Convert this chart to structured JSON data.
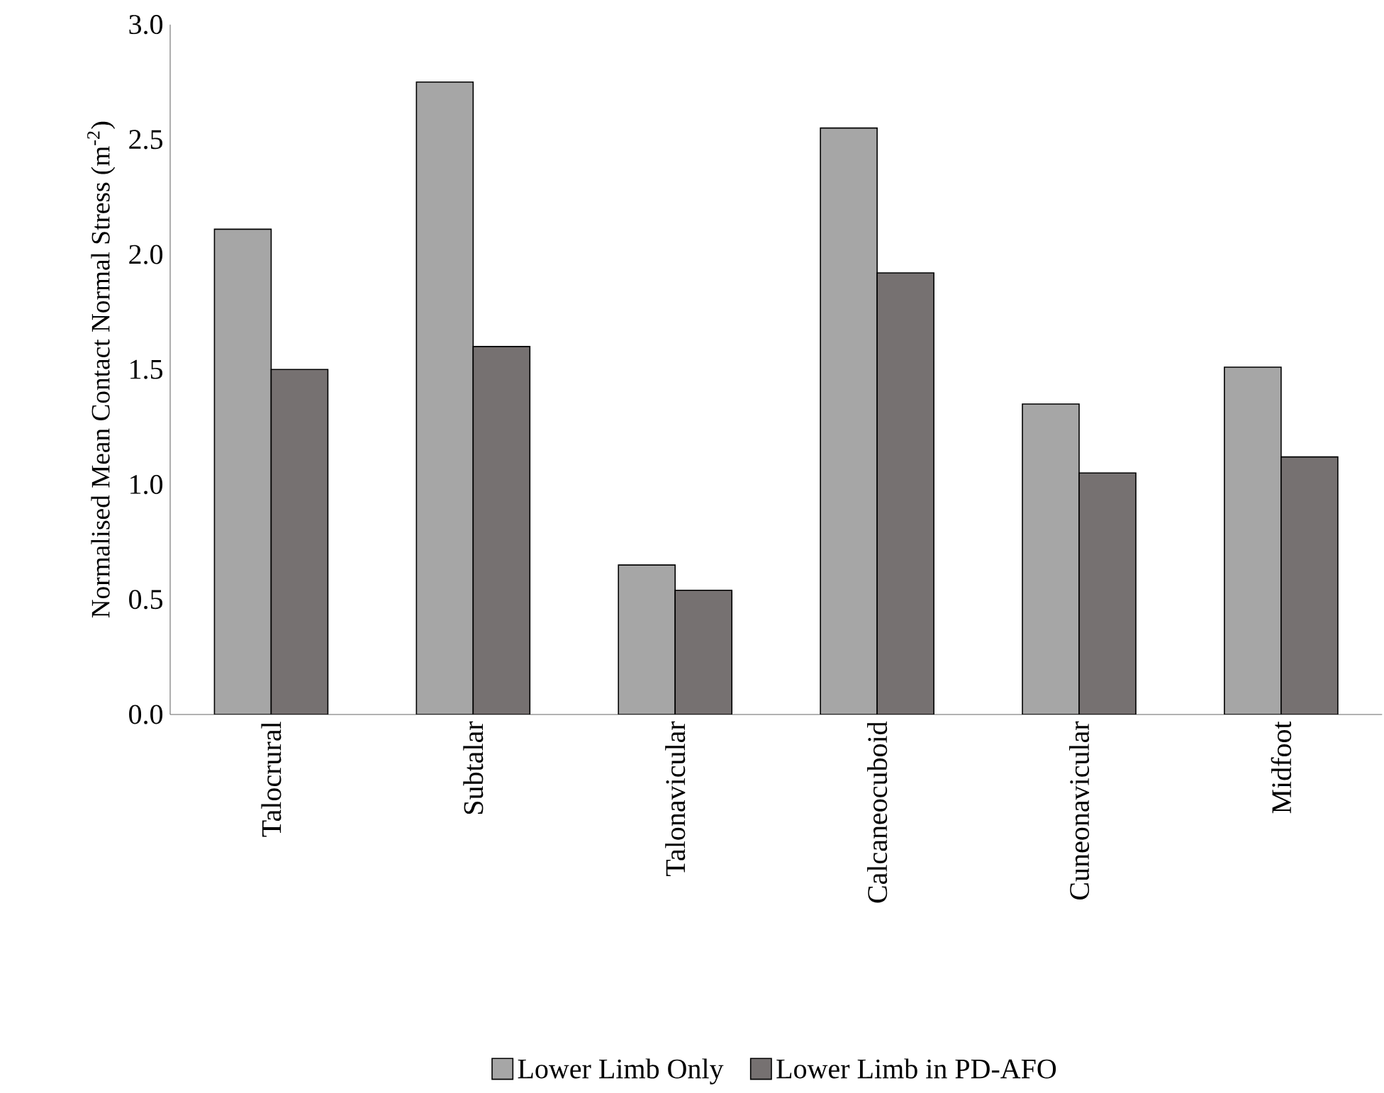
{
  "chart_data": {
    "type": "bar",
    "ylabel": "Normalised Mean Contact Normal Stress (m$^{-2}$)",
    "categories": [
      "Talocrural",
      "Subtalar",
      "Talonavicular",
      "Calcaneocuboid",
      "Cuneonavicular",
      "Midfoot"
    ],
    "series": [
      {
        "name": "Lower Limb Only",
        "color": "#a6a6a6",
        "values": [
          2.11,
          2.75,
          0.65,
          2.55,
          1.35,
          1.51
        ]
      },
      {
        "name": "Lower Limb in PD-AFO",
        "color": "#767171",
        "values": [
          1.5,
          1.6,
          0.54,
          1.92,
          1.05,
          1.12
        ]
      }
    ],
    "ylim": [
      0,
      3
    ],
    "yticks": [
      {
        "value": 0,
        "label": "0.0"
      },
      {
        "value": 0.5,
        "label": "0.5"
      },
      {
        "value": 1,
        "label": "1.0"
      },
      {
        "value": 1.5,
        "label": "1.5"
      },
      {
        "value": 2,
        "label": "2.0"
      },
      {
        "value": 2.5,
        "label": "2.5"
      },
      {
        "value": 3,
        "label": "3.0"
      }
    ],
    "legend": "bottom"
  }
}
